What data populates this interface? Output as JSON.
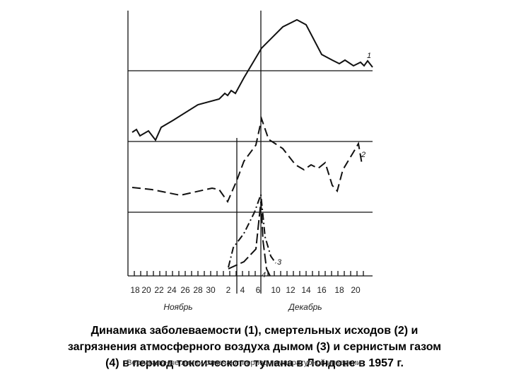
{
  "figure": {
    "x_labels": [
      "18",
      "20",
      "22",
      "24",
      "26",
      "28",
      "30",
      "2",
      "4",
      "6",
      "10",
      "12",
      "14",
      "16",
      "18",
      "20"
    ],
    "months": [
      "Ноябрь",
      "Декабрь"
    ],
    "line_labels": [
      "1",
      "2",
      "3",
      "4"
    ]
  },
  "caption": [
    "Динамика заболеваемости (1), смертельных исходов (2) и",
    "загрязнения атмосферного воздуха дымом (3) и сернистым газом",
    "(4) в период токсического тумана в Лондоне в 1957 г."
  ],
  "note": "Вертикальные линии отмечают период температурной инверсии"
}
